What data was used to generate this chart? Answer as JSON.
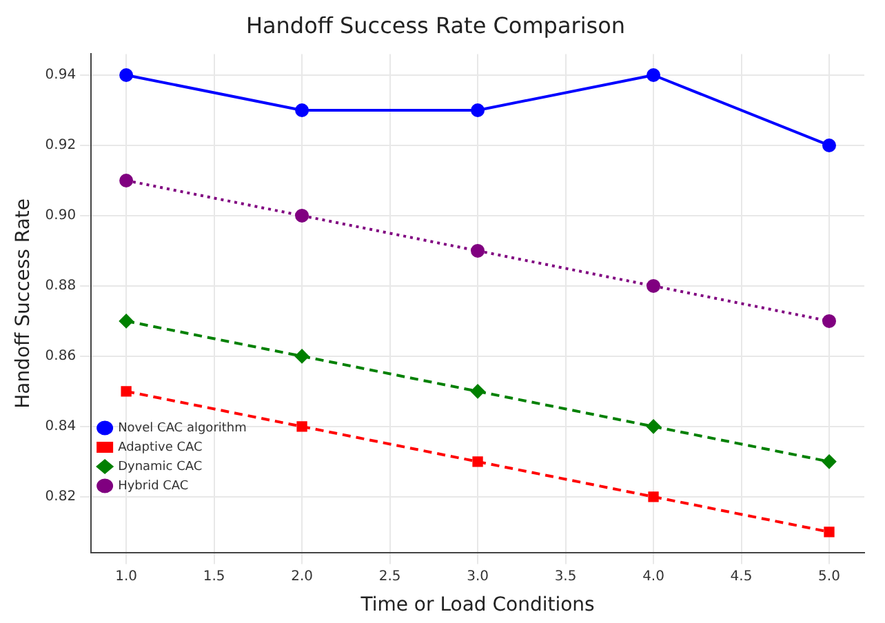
{
  "chart_data": {
    "type": "line",
    "title": "Handoff Success Rate Comparison",
    "xlabel": "Time or Load Conditions",
    "ylabel": "Handoff Success Rate",
    "x": [
      1,
      2,
      3,
      4,
      5
    ],
    "series": [
      {
        "name": "Novel CAC algorithm",
        "color": "#0000ff",
        "values": [
          0.94,
          0.93,
          0.93,
          0.94,
          0.92
        ],
        "marker": "circle",
        "line_style": "solid"
      },
      {
        "name": "Adaptive CAC",
        "color": "#ff0000",
        "values": [
          0.85,
          0.84,
          0.83,
          0.82,
          0.81
        ],
        "marker": "square",
        "line_style": "dashed"
      },
      {
        "name": "Dynamic CAC",
        "color": "#008000",
        "values": [
          0.87,
          0.86,
          0.85,
          0.84,
          0.83
        ],
        "marker": "diamond",
        "line_style": "dashed"
      },
      {
        "name": "Hybrid CAC",
        "color": "#800080",
        "values": [
          0.91,
          0.9,
          0.89,
          0.88,
          0.87
        ],
        "marker": "circle",
        "line_style": "dotted"
      }
    ],
    "xlim": [
      0.8,
      5.2
    ],
    "xticks": [
      {
        "value": 1,
        "label": "1.0"
      },
      {
        "value": 1.5,
        "label": "1.5"
      },
      {
        "value": 2,
        "label": "2.0"
      },
      {
        "value": 2.5,
        "label": "2.5"
      },
      {
        "value": 3,
        "label": "3.0"
      },
      {
        "value": 3.5,
        "label": "3.5"
      },
      {
        "value": 4,
        "label": "4.0"
      },
      {
        "value": 4.5,
        "label": "4.5"
      },
      {
        "value": 5,
        "label": "5.0"
      }
    ],
    "ylim": [
      0.804,
      0.946
    ],
    "yticks": [
      0.82,
      0.84,
      0.86,
      0.88,
      {
        "value": 0.9,
        "label": "0.90"
      },
      0.92,
      0.94
    ],
    "grid": true,
    "legend": "bottom left"
  }
}
